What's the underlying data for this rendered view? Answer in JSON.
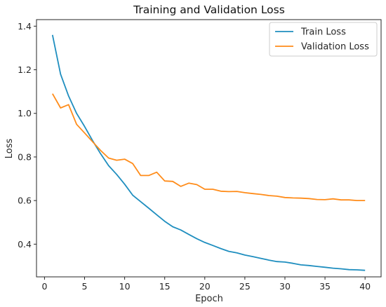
{
  "chart_data": {
    "type": "line",
    "title": "Training and Validation Loss",
    "xlabel": "Epoch",
    "ylabel": "Loss",
    "xlim": [
      -1,
      42
    ],
    "ylim": [
      0.25,
      1.43
    ],
    "xticks": [
      0,
      5,
      10,
      15,
      20,
      25,
      30,
      35,
      40
    ],
    "yticks": [
      0.4,
      0.6,
      0.8,
      1.0,
      1.2,
      1.4
    ],
    "xtick_labels": [
      "0",
      "5",
      "10",
      "15",
      "20",
      "25",
      "30",
      "35",
      "40"
    ],
    "ytick_labels": [
      "0.4",
      "0.6",
      "0.8",
      "1.0",
      "1.2",
      "1.4"
    ],
    "grid": false,
    "legend_position": "upper right",
    "x": [
      1,
      2,
      3,
      4,
      5,
      6,
      7,
      8,
      9,
      10,
      11,
      12,
      13,
      14,
      15,
      16,
      17,
      18,
      19,
      20,
      21,
      22,
      23,
      24,
      25,
      26,
      27,
      28,
      29,
      30,
      31,
      32,
      33,
      34,
      35,
      36,
      37,
      38,
      39,
      40
    ],
    "series": [
      {
        "name": "Train Loss",
        "color": "#1f8ebf",
        "values": [
          1.36,
          1.18,
          1.08,
          1.0,
          0.94,
          0.875,
          0.815,
          0.76,
          0.72,
          0.675,
          0.625,
          0.595,
          0.565,
          0.535,
          0.505,
          0.48,
          0.465,
          0.445,
          0.425,
          0.408,
          0.394,
          0.38,
          0.367,
          0.36,
          0.35,
          0.343,
          0.335,
          0.327,
          0.32,
          0.318,
          0.312,
          0.305,
          0.302,
          0.298,
          0.294,
          0.29,
          0.287,
          0.283,
          0.282,
          0.28
        ]
      },
      {
        "name": "Validation Loss",
        "color": "#ff8c1a",
        "values": [
          1.09,
          1.025,
          1.04,
          0.95,
          0.91,
          0.87,
          0.83,
          0.795,
          0.785,
          0.79,
          0.77,
          0.715,
          0.715,
          0.73,
          0.69,
          0.688,
          0.665,
          0.68,
          0.673,
          0.652,
          0.652,
          0.643,
          0.641,
          0.642,
          0.636,
          0.632,
          0.628,
          0.623,
          0.62,
          0.614,
          0.612,
          0.611,
          0.609,
          0.605,
          0.604,
          0.608,
          0.603,
          0.603,
          0.6,
          0.6
        ]
      }
    ]
  }
}
